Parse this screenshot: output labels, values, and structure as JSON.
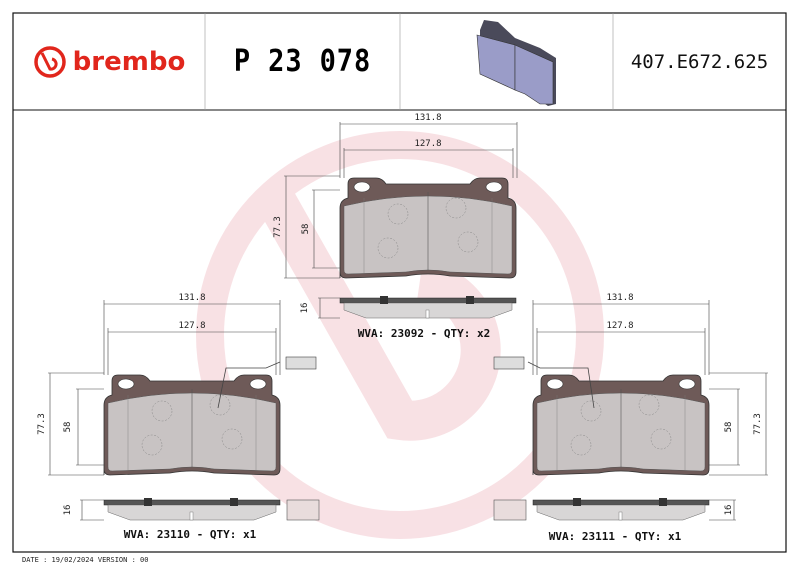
{
  "brand": {
    "name": "brembo",
    "color": "#e1261c"
  },
  "header": {
    "part_number": "P 23 078",
    "reference": "407.E672.625"
  },
  "views": [
    {
      "id": "top",
      "width_outer": "131.8",
      "width_inner": "127.8",
      "height_outer": "77.3",
      "height_inner": "58",
      "thickness": "16",
      "label": "WVA: 23092 - QTY: x2"
    },
    {
      "id": "left",
      "width_outer": "131.8",
      "width_inner": "127.8",
      "height_outer": "77.3",
      "height_inner": "58",
      "thickness": "16",
      "label": "WVA: 23110 - QTY: x1"
    },
    {
      "id": "right",
      "width_outer": "131.8",
      "width_inner": "127.8",
      "height_outer": "77.3",
      "height_inner": "58",
      "thickness": "16",
      "label": "WVA: 23111 - QTY: x1"
    }
  ],
  "footer": {
    "date_version": "DATE : 19/02/2024 VERSION : 00"
  },
  "colors": {
    "backplate": "#6e5a58",
    "friction": "#d8d6d6",
    "watermark": "#f3c9cf",
    "pad_3d": "#9a9cc8"
  }
}
